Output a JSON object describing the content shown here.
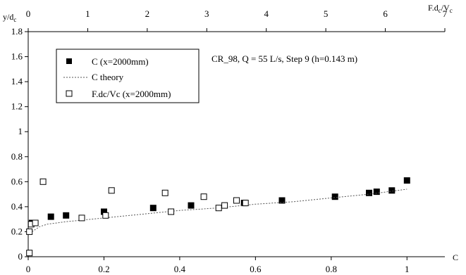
{
  "chart_data": {
    "type": "scatter",
    "title": "",
    "annotation": "CR_98, Q = 55 L/s, Step 9 (h=0.143 m)",
    "ylabel": "y/d",
    "ylabel_sub": "c",
    "xlabel_bottom": "C",
    "xlabel_top_parts": [
      "F.d",
      "c",
      "/V",
      "c"
    ],
    "xlim_bottom": [
      0,
      1.1
    ],
    "xlim_top": [
      0,
      7
    ],
    "ylim": [
      0,
      1.8
    ],
    "bottom_ticks": [
      {
        "value": 0,
        "label": "0"
      },
      {
        "value": 0.2,
        "label": "0.2"
      },
      {
        "value": 0.4,
        "label": "0.4"
      },
      {
        "value": 0.6,
        "label": "0.6"
      },
      {
        "value": 0.8,
        "label": "0.8"
      },
      {
        "value": 1,
        "label": "1"
      }
    ],
    "top_ticks": [
      {
        "value": 0,
        "label": "0"
      },
      {
        "value": 1,
        "label": "1"
      },
      {
        "value": 2,
        "label": "2"
      },
      {
        "value": 3,
        "label": "3"
      },
      {
        "value": 4,
        "label": "4"
      },
      {
        "value": 5,
        "label": "5"
      },
      {
        "value": 6,
        "label": "6"
      },
      {
        "value": 7,
        "label": "7"
      }
    ],
    "y_ticks": [
      {
        "value": 0,
        "label": "0"
      },
      {
        "value": 0.2,
        "label": "0.2"
      },
      {
        "value": 0.4,
        "label": "0.4"
      },
      {
        "value": 0.6,
        "label": "0.6"
      },
      {
        "value": 0.8,
        "label": "0.8"
      },
      {
        "value": 1,
        "label": "1"
      },
      {
        "value": 1.2,
        "label": "1.2"
      },
      {
        "value": 1.4,
        "label": "1.4"
      },
      {
        "value": 1.6,
        "label": "1.6"
      },
      {
        "value": 1.8,
        "label": "1.8"
      }
    ],
    "grid": false,
    "legend_position": "top-left",
    "series": [
      {
        "name": "C (x=2000mm)",
        "marker": "filled-square",
        "axis": "bottom",
        "color": "#000000",
        "points": [
          [
            0.01,
            0.27
          ],
          [
            0.06,
            0.32
          ],
          [
            0.1,
            0.33
          ],
          [
            0.2,
            0.36
          ],
          [
            0.33,
            0.39
          ],
          [
            0.43,
            0.41
          ],
          [
            0.57,
            0.43
          ],
          [
            0.67,
            0.45
          ],
          [
            0.81,
            0.48
          ],
          [
            0.9,
            0.51
          ],
          [
            0.92,
            0.52
          ],
          [
            0.96,
            0.53
          ],
          [
            1.0,
            0.61
          ]
        ]
      },
      {
        "name": "C theory",
        "marker": "dotted-line",
        "axis": "bottom",
        "color": "#555555",
        "points": [
          [
            0.01,
            0.2
          ],
          [
            0.03,
            0.24
          ],
          [
            0.05,
            0.26
          ],
          [
            0.1,
            0.28
          ],
          [
            0.2,
            0.31
          ],
          [
            0.3,
            0.34
          ],
          [
            0.4,
            0.37
          ],
          [
            0.5,
            0.39
          ],
          [
            0.6,
            0.42
          ],
          [
            0.7,
            0.44
          ],
          [
            0.8,
            0.47
          ],
          [
            0.9,
            0.5
          ],
          [
            1.0,
            0.54
          ]
        ]
      },
      {
        "name": "F.dc/Vc (x=2000mm)",
        "marker": "hollow-square",
        "axis": "top",
        "color": "#000000",
        "points": [
          [
            0.02,
            0.03
          ],
          [
            0.02,
            0.2
          ],
          [
            0.05,
            0.26
          ],
          [
            0.12,
            0.27
          ],
          [
            0.25,
            0.6
          ],
          [
            0.9,
            0.31
          ],
          [
            1.3,
            0.33
          ],
          [
            1.4,
            0.53
          ],
          [
            2.3,
            0.51
          ],
          [
            2.4,
            0.36
          ],
          [
            2.95,
            0.48
          ],
          [
            3.2,
            0.39
          ],
          [
            3.3,
            0.41
          ],
          [
            3.5,
            0.45
          ],
          [
            3.65,
            0.43
          ]
        ]
      }
    ]
  }
}
